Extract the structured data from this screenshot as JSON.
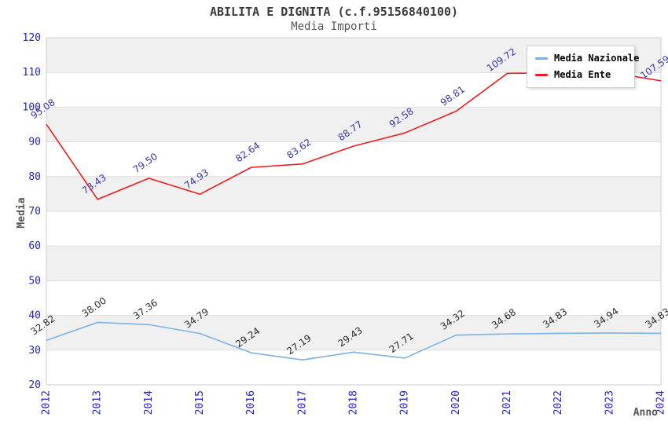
{
  "chart_data": {
    "type": "line",
    "title": "ABILITA E DIGNITA (c.f.95156840100)",
    "subtitle": "Media Importi",
    "xlabel": "Anno",
    "ylabel": "Media",
    "x": [
      2012,
      2013,
      2014,
      2015,
      2016,
      2017,
      2018,
      2019,
      2020,
      2021,
      2022,
      2023,
      2024
    ],
    "ylim": [
      20,
      120
    ],
    "ytick_step": 10,
    "grid": "alternating-horizontal-bands",
    "legend_position": "top-right-inside",
    "series": [
      {
        "name": "Media Nazionale",
        "color": "#7db2e2",
        "label_color": "#2b2b2b",
        "values": [
          32.82,
          38.0,
          37.36,
          34.79,
          29.24,
          27.19,
          29.43,
          27.71,
          34.32,
          34.68,
          34.83,
          34.94,
          34.83
        ],
        "labels": [
          "32.82",
          "38.00",
          "37.36",
          "34.79",
          "29.24",
          "27.19",
          "29.43",
          "27.71",
          "34.32",
          "34.68",
          "34.83",
          "34.94",
          "34.83"
        ]
      },
      {
        "name": "Media Ente",
        "color": "#ee1c1c",
        "label_color": "#3535b2",
        "values": [
          95.08,
          73.43,
          79.5,
          74.93,
          82.64,
          83.62,
          88.77,
          92.58,
          98.81,
          109.72,
          109.9,
          110.0,
          107.59
        ],
        "labels": [
          "95.08",
          "73.43",
          "79.50",
          "74.93",
          "82.64",
          "83.62",
          "88.77",
          "92.58",
          "98.81",
          "109.72",
          "",
          "",
          "107.59"
        ]
      }
    ]
  },
  "colors": {
    "axis_tick": "#2323cc",
    "band": "#f0f0f0",
    "grid_line": "#dedede",
    "plot_border": "#cccccc",
    "axis_label": "#555555",
    "title": "#3a3a3a",
    "subtitle": "#555555"
  }
}
